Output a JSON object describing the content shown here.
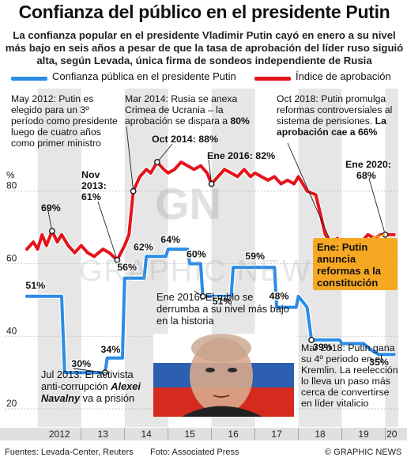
{
  "title": "Confianza del público en el presidente Putin",
  "subtitle": "La confianza popular en el presidente Vladimir Putin cayó en enero a su nivel más bajo en seis años a pesar de que la tasa de aprobación del líder ruso siguió alta, según Levada, única firma de sondeos independiente de Rusia",
  "legend": {
    "trust": "Confianza pública en el presidente Putin",
    "approval": "Índice de aprobación"
  },
  "colors": {
    "trust": "#2b8ce6",
    "approval": "#e3141b",
    "highlight": "#f7a823",
    "axis_band": "#e6e6e6"
  },
  "annotations": {
    "may2012": "May 2012: Putin es elegido para un 3º período como presidente luego de cuatro años como primer ministro",
    "may2012_val": "69%",
    "nov2013": "Nov 2013: 61%",
    "mar2014_a": "Mar 2014: Rusia se anexa Crimea de Ucrania – la aprobación se dispara a",
    "mar2014_b": "80%",
    "oct2014": "Oct 2014: 88%",
    "ene2016a": "Ene 2016: 82%",
    "oct2018_a": "Oct 2018: Putin promulga reformas controversiales al sistema de pensiones.",
    "oct2018_b": "La aprobación cae a 66%",
    "ene2020": "Ene 2020:",
    "ene2020_val": "68%",
    "box": "Ene: Putin anuncia reformas a la constitución",
    "ene2016b": "Ene 2016: El rublo se derrumba a su nivel más bajo en la historia",
    "jul2013_a": "Jul 2013: El activista anti-corrupción",
    "jul2013_b": "Alexei Navalny",
    "jul2013_c": "va a prisión",
    "mar2018": "Mar 2018: Putin gana su 4º periodo en el Kremlin. La reelección lo lleva un paso más cerca de convertirse en líder vitalicio"
  },
  "watermark": {
    "mark": "GN",
    "text": "GRAPHIC NEWS"
  },
  "footer": {
    "sources": "Fuentes: Levada-Center, Reuters",
    "photo": "Foto: Associated Press",
    "credit": "© GRAPHIC NEWS"
  },
  "chart_data": {
    "type": "line",
    "x_ticks": [
      "2012",
      "13",
      "14",
      "15",
      "16",
      "17",
      "18",
      "19",
      "20"
    ],
    "y_ticks": [
      20,
      40,
      60,
      80
    ],
    "y_unit": "%",
    "ylim": [
      15,
      88
    ],
    "xlim": [
      2011.75,
      2020.3
    ],
    "series": [
      {
        "name": "Confianza pública en el presidente Putin",
        "key": "trust",
        "points": [
          [
            2011.75,
            51
          ],
          [
            2012.0,
            51
          ],
          [
            2012.2,
            51
          ],
          [
            2012.4,
            51
          ],
          [
            2012.55,
            51
          ],
          [
            2012.62,
            30
          ],
          [
            2013.0,
            30
          ],
          [
            2013.4,
            30
          ],
          [
            2013.55,
            30
          ],
          [
            2013.6,
            34
          ],
          [
            2013.95,
            34
          ],
          [
            2014.0,
            56
          ],
          [
            2014.45,
            56
          ],
          [
            2014.5,
            62
          ],
          [
            2014.95,
            62
          ],
          [
            2015.0,
            64
          ],
          [
            2015.45,
            64
          ],
          [
            2015.5,
            60
          ],
          [
            2015.75,
            60
          ],
          [
            2015.8,
            51
          ],
          [
            2016.45,
            51
          ],
          [
            2016.5,
            59
          ],
          [
            2017.45,
            59
          ],
          [
            2017.5,
            48
          ],
          [
            2017.95,
            48
          ],
          [
            2018.0,
            51
          ],
          [
            2018.2,
            48
          ],
          [
            2018.3,
            39
          ],
          [
            2018.95,
            39
          ],
          [
            2019.0,
            38
          ],
          [
            2019.5,
            38
          ],
          [
            2019.7,
            36
          ],
          [
            2019.85,
            35
          ],
          [
            2020.2,
            35
          ]
        ]
      },
      {
        "name": "Índice de aprobación",
        "key": "approval",
        "points": [
          [
            2011.75,
            64
          ],
          [
            2011.9,
            66
          ],
          [
            2012.0,
            64
          ],
          [
            2012.1,
            68
          ],
          [
            2012.2,
            65
          ],
          [
            2012.33,
            69
          ],
          [
            2012.45,
            66
          ],
          [
            2012.55,
            68
          ],
          [
            2012.7,
            65
          ],
          [
            2012.85,
            63
          ],
          [
            2013.0,
            65
          ],
          [
            2013.15,
            63
          ],
          [
            2013.3,
            62
          ],
          [
            2013.5,
            64
          ],
          [
            2013.65,
            63
          ],
          [
            2013.83,
            61
          ],
          [
            2014.0,
            65
          ],
          [
            2014.1,
            68
          ],
          [
            2014.2,
            80
          ],
          [
            2014.35,
            84
          ],
          [
            2014.5,
            86
          ],
          [
            2014.6,
            85
          ],
          [
            2014.75,
            88
          ],
          [
            2014.9,
            86
          ],
          [
            2015.0,
            85
          ],
          [
            2015.15,
            86
          ],
          [
            2015.3,
            88
          ],
          [
            2015.45,
            87
          ],
          [
            2015.6,
            86
          ],
          [
            2015.75,
            87
          ],
          [
            2015.9,
            85
          ],
          [
            2016.0,
            82
          ],
          [
            2016.15,
            84
          ],
          [
            2016.3,
            86
          ],
          [
            2016.45,
            85
          ],
          [
            2016.6,
            84
          ],
          [
            2016.75,
            86
          ],
          [
            2016.9,
            84
          ],
          [
            2017.0,
            85
          ],
          [
            2017.15,
            84
          ],
          [
            2017.3,
            83
          ],
          [
            2017.45,
            84
          ],
          [
            2017.6,
            82
          ],
          [
            2017.75,
            83
          ],
          [
            2017.9,
            82
          ],
          [
            2018.0,
            84
          ],
          [
            2018.2,
            80
          ],
          [
            2018.4,
            79
          ],
          [
            2018.5,
            74
          ],
          [
            2018.62,
            68
          ],
          [
            2018.75,
            66
          ],
          [
            2018.9,
            67
          ],
          [
            2019.0,
            64
          ],
          [
            2019.15,
            66
          ],
          [
            2019.3,
            64
          ],
          [
            2019.45,
            66
          ],
          [
            2019.6,
            68
          ],
          [
            2019.75,
            67
          ],
          [
            2019.9,
            68
          ],
          [
            2020.0,
            68
          ],
          [
            2020.2,
            68
          ]
        ]
      }
    ]
  }
}
